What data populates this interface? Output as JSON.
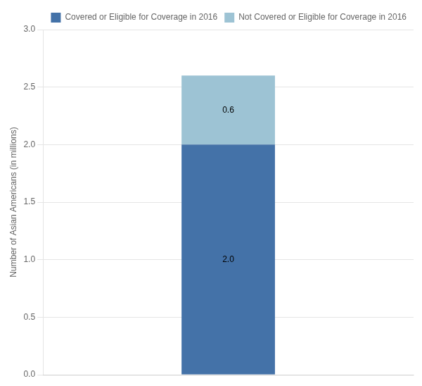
{
  "chart_data": {
    "type": "bar",
    "stacked": true,
    "categories": [
      null
    ],
    "series": [
      {
        "name": "Covered or Eligible for Coverage in 2016",
        "color": "#4472A8",
        "values": [
          2.0
        ],
        "value_labels": [
          "2.0"
        ]
      },
      {
        "name": "Not Covered or Eligible for Coverage in 2016",
        "color": "#9DC3D4",
        "values": [
          0.6
        ],
        "value_labels": [
          "0.6"
        ]
      }
    ],
    "ylabel": "Number of Asian Americans (in millions)",
    "ylim": [
      0.0,
      3.0
    ],
    "yticks": [
      {
        "value": 0.0,
        "label": "0.0"
      },
      0.5,
      {
        "value": 1.0,
        "label": "1.0"
      },
      1.5,
      {
        "value": 2.0,
        "label": "2.0"
      },
      2.5,
      {
        "value": 3.0,
        "label": "3.0"
      }
    ],
    "grid": true,
    "legend": "top-right",
    "data_labels": true,
    "tick_labels": "y"
  }
}
